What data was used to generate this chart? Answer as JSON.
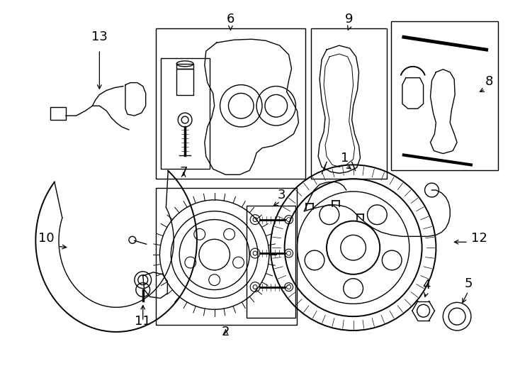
{
  "background_color": "#ffffff",
  "line_color": "#000000",
  "figsize": [
    7.34,
    5.4
  ],
  "dpi": 100
}
